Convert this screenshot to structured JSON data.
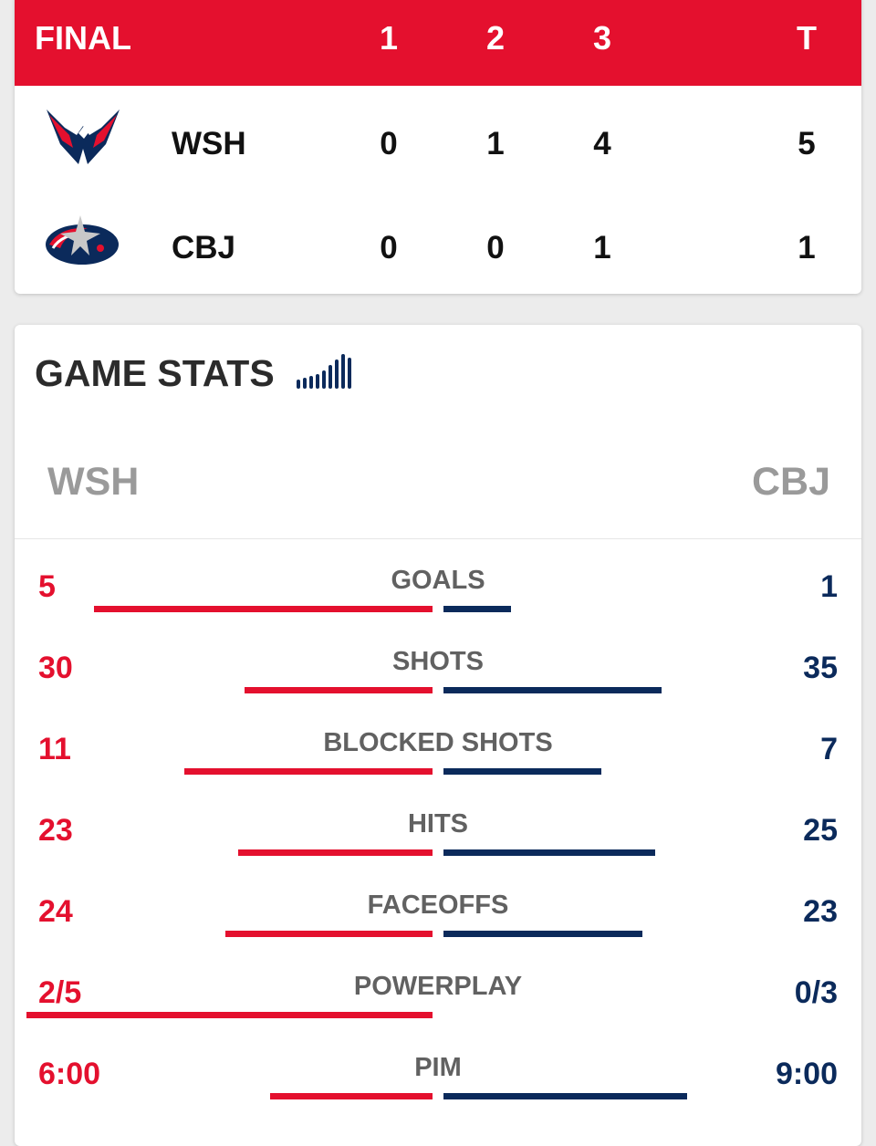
{
  "scoreboard": {
    "status": "FINAL",
    "periods": [
      "1",
      "2",
      "3"
    ],
    "total_label": "T",
    "teams": [
      {
        "abbr": "WSH",
        "logo": "capitals-logo",
        "periods": [
          "0",
          "1",
          "4"
        ],
        "total": "5"
      },
      {
        "abbr": "CBJ",
        "logo": "blue-jackets-logo",
        "periods": [
          "0",
          "0",
          "1"
        ],
        "total": "1"
      }
    ]
  },
  "game_stats": {
    "title": "GAME STATS",
    "icon": "bar-chart-icon",
    "home": "WSH",
    "away": "CBJ",
    "colors": {
      "home": "#e4102e",
      "away": "#0b2a5b"
    },
    "stats": [
      {
        "name": "GOALS",
        "home": "5",
        "away": "1",
        "home_share": 0.833,
        "away_share": 0.167
      },
      {
        "name": "SHOTS",
        "home": "30",
        "away": "35",
        "home_share": 0.462,
        "away_share": 0.538
      },
      {
        "name": "BLOCKED SHOTS",
        "home": "11",
        "away": "7",
        "home_share": 0.611,
        "away_share": 0.389
      },
      {
        "name": "HITS",
        "home": "23",
        "away": "25",
        "home_share": 0.479,
        "away_share": 0.521
      },
      {
        "name": "FACEOFFS",
        "home": "24",
        "away": "23",
        "home_share": 0.511,
        "away_share": 0.489
      },
      {
        "name": "POWERPLAY",
        "home": "2/5",
        "away": "0/3",
        "home_share": 1.0,
        "away_share": 0.0
      },
      {
        "name": "PIM",
        "home": "6:00",
        "away": "9:00",
        "home_share": 0.4,
        "away_share": 0.6
      }
    ]
  }
}
